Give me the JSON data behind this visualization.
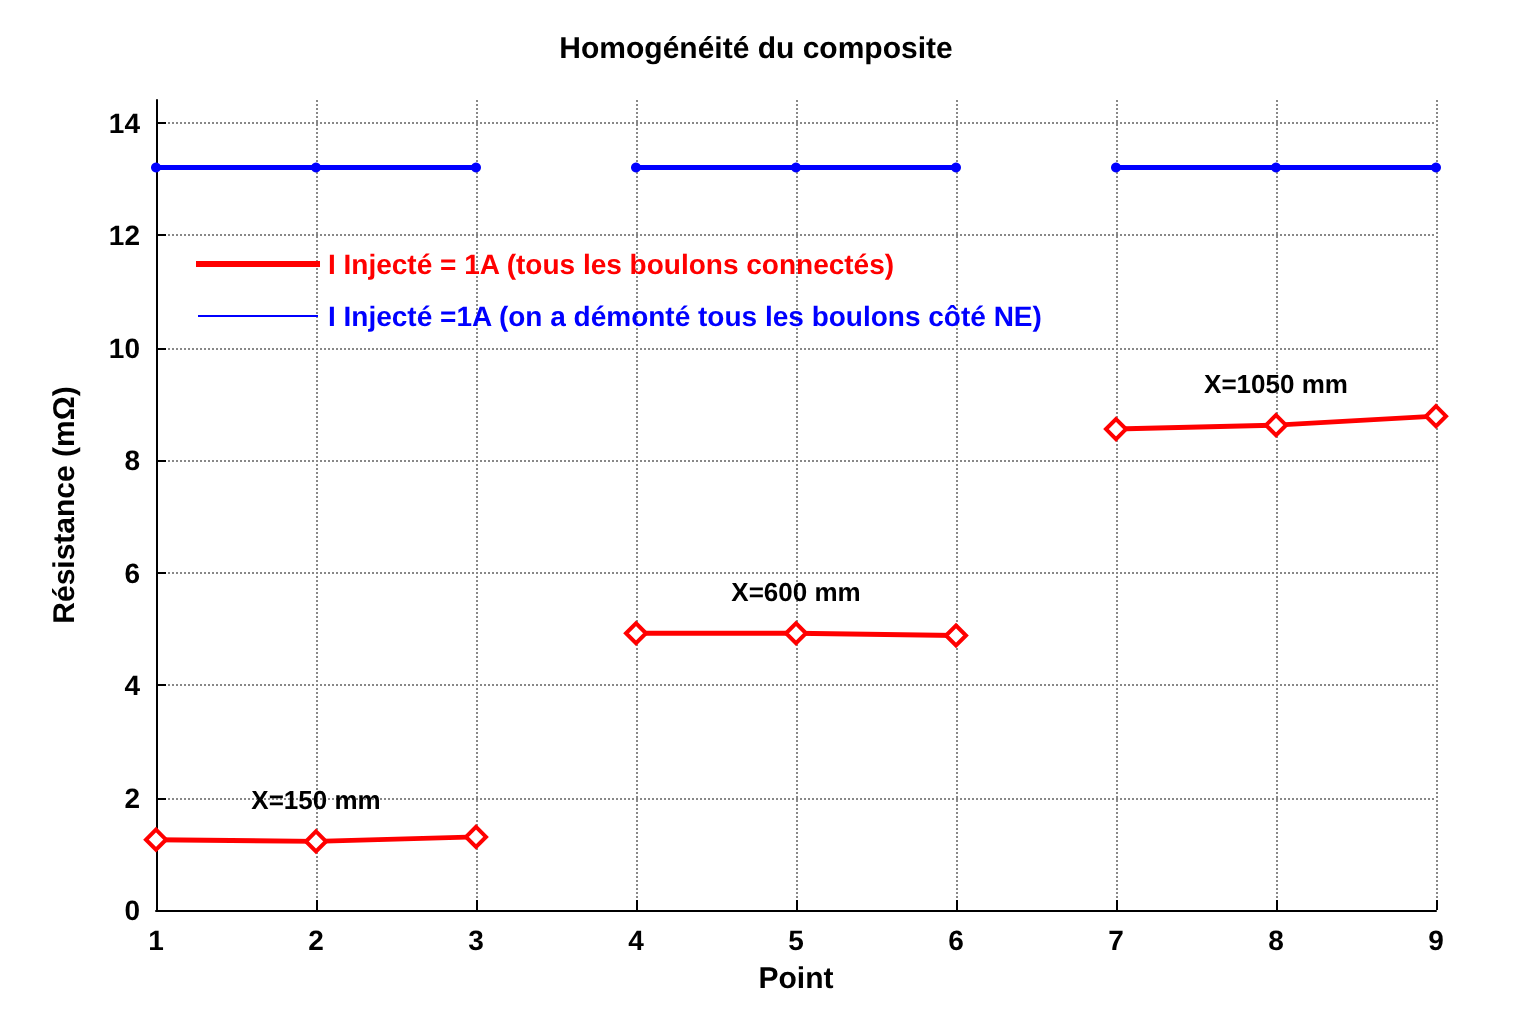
{
  "chart_data": {
    "type": "line",
    "title": "Homogénéité du composite",
    "xlabel": "Point",
    "ylabel": "Résistance (mΩ)",
    "xlim": [
      1,
      9
    ],
    "xticks": [
      1,
      2,
      3,
      4,
      5,
      6,
      7,
      8,
      9
    ],
    "ylim": [
      0,
      14.4
    ],
    "yticks": [
      0,
      2,
      4,
      6,
      8,
      10,
      12,
      14
    ],
    "grid": true,
    "legend": "top left",
    "series": [
      {
        "name": "I Injecté = 1A (tous les boulons connectés)",
        "color": "#ff0000",
        "marker": "diamond",
        "x": [
          1,
          2,
          3
        ],
        "values": [
          1.25,
          1.22,
          1.3
        ]
      },
      {
        "color": "#ff0000",
        "marker": "diamond",
        "x": [
          4,
          5,
          6
        ],
        "values": [
          4.92,
          4.92,
          4.88
        ]
      },
      {
        "color": "#ff0000",
        "marker": "diamond",
        "x": [
          7,
          8,
          9
        ],
        "values": [
          8.55,
          8.62,
          8.78
        ]
      },
      {
        "name": "I Injecté =1A (on a démonté tous les boulons côté NE)",
        "color": "#0000ff",
        "marker": "circle",
        "x": [
          1,
          2,
          3
        ],
        "values": [
          13.2,
          13.2,
          13.2
        ]
      },
      {
        "color": "#0000ff",
        "marker": "circle",
        "x": [
          4,
          5,
          6
        ],
        "values": [
          13.2,
          13.2,
          13.2
        ]
      },
      {
        "color": "#0000ff",
        "marker": "circle",
        "x": [
          7,
          8,
          9
        ],
        "values": [
          13.2,
          13.2,
          13.2
        ]
      }
    ],
    "annotations": [
      "X=150 mm",
      "X=600 mm",
      "X=1050 mm"
    ]
  }
}
